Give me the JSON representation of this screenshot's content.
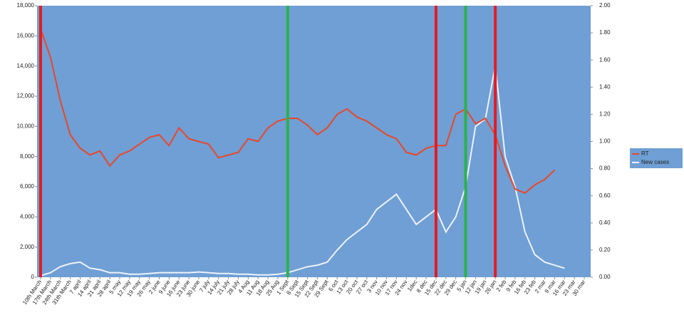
{
  "chart_data": {
    "type": "line",
    "categories": [
      "10th March",
      "17th March",
      "24th March",
      "31th March",
      "7 april",
      "14 april",
      "21 april",
      "28 april",
      "5 may",
      "12 may",
      "19 may",
      "26 may",
      "2 june",
      "9 june",
      "16 june",
      "23 june",
      "30 june",
      "7 july",
      "14 july",
      "21 july",
      "28 july",
      "4 Aug",
      "11 Aug",
      "18 Aug",
      "25 Aug",
      "1 Sept",
      "8 Sept",
      "15 Sept",
      "22 Sept",
      "29 Sept",
      "6 oct",
      "13 oct",
      "20 oct",
      "27 oct",
      "3 nov",
      "10 nov",
      "17 nov",
      "24 nov",
      "1dec",
      "8 dec",
      "15 dec",
      "22 dec",
      "29 dec",
      "5 jan",
      "12 jan",
      "19 jan",
      "26 jan",
      "2 feb",
      "9 feb",
      "16 feb",
      "23 feb",
      "2 mar",
      "9 mar",
      "16 mar",
      "23 mar",
      "30 mar"
    ],
    "series": [
      {
        "name": "RT",
        "color": "#e8472a",
        "axis": "y2",
        "values": [
          1.83,
          1.62,
          1.3,
          1.05,
          0.95,
          0.9,
          0.93,
          0.82,
          0.9,
          0.93,
          0.98,
          1.03,
          1.05,
          0.97,
          1.1,
          1.02,
          1.0,
          0.98,
          0.88,
          0.9,
          0.92,
          1.02,
          1.0,
          1.1,
          1.15,
          1.17,
          1.17,
          1.12,
          1.05,
          1.1,
          1.2,
          1.24,
          1.18,
          1.15,
          1.1,
          1.05,
          1.02,
          0.92,
          0.9,
          0.95,
          0.97,
          0.97,
          1.2,
          1.24,
          1.13,
          1.17,
          1.05,
          0.82,
          0.65,
          0.62,
          0.68,
          0.72,
          0.79,
          null,
          null,
          null
        ]
      },
      {
        "name": "New cases",
        "color": "#eef2fa",
        "values": [
          100,
          300,
          700,
          900,
          1000,
          600,
          500,
          300,
          300,
          200,
          200,
          250,
          300,
          300,
          300,
          300,
          350,
          300,
          250,
          250,
          200,
          200,
          150,
          150,
          200,
          300,
          500,
          700,
          800,
          1000,
          1800,
          2500,
          3000,
          3500,
          4500,
          5000,
          5500,
          4500,
          3500,
          4000,
          4500,
          3000,
          4000,
          6000,
          10000,
          10500,
          14000,
          8000,
          6000,
          3000,
          1500,
          1000,
          800,
          600,
          null,
          null
        ]
      }
    ],
    "ylim": [
      0,
      18000
    ],
    "yticks": [
      0,
      {
        "value": 2000,
        "label": "2,000"
      },
      {
        "value": 4000,
        "label": "4,000"
      },
      {
        "value": 6000,
        "label": "6,000"
      },
      {
        "value": 8000,
        "label": "8,000"
      },
      {
        "value": 10000,
        "label": "10,000"
      },
      {
        "value": 12000,
        "label": "12,000"
      },
      {
        "value": 14000,
        "label": "14,000"
      },
      {
        "value": 16000,
        "label": "16,000"
      },
      {
        "value": 18000,
        "label": "18,000"
      }
    ],
    "y2lim": [
      0,
      2
    ],
    "y2ticks": [
      {
        "value": 0,
        "label": "0.00"
      },
      {
        "value": 0.2,
        "label": "0.20"
      },
      {
        "value": 0.4,
        "label": "0.40"
      },
      {
        "value": 0.6,
        "label": "0.60"
      },
      {
        "value": 0.8,
        "label": "0.80"
      },
      {
        "value": 1,
        "label": "1.00"
      },
      {
        "value": 1.2,
        "label": "1.20"
      },
      {
        "value": 1.4,
        "label": "1.40"
      },
      {
        "value": 1.6,
        "label": "1.60"
      },
      {
        "value": 1.8,
        "label": "1.80"
      },
      {
        "value": 2,
        "label": "2.00"
      }
    ],
    "vertical_lines": [
      {
        "x": "10th March",
        "color": "#e31b23"
      },
      {
        "x": "1 Sept",
        "color": "#2bb24c"
      },
      {
        "x": "15 dec",
        "color": "#e31b23"
      },
      {
        "x": "5 jan",
        "color": "#2bb24c"
      },
      {
        "x": "26 jan",
        "color": "#e31b23"
      }
    ],
    "legend": "right"
  }
}
